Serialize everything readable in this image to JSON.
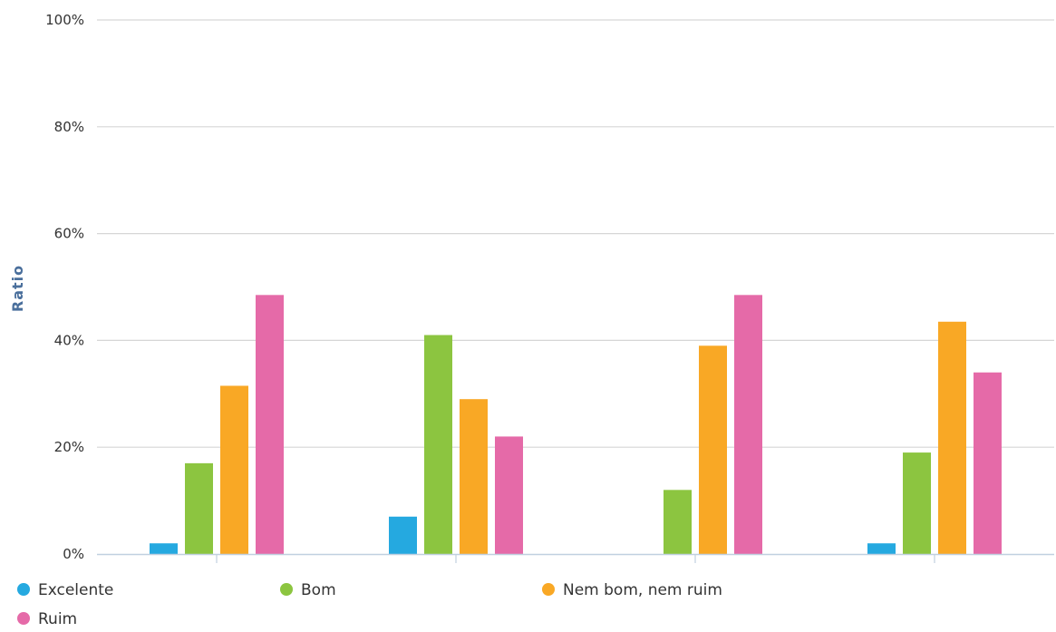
{
  "chart_data": {
    "type": "bar",
    "title": "",
    "xlabel": "",
    "ylabel": "Ratio",
    "ylim": [
      0,
      100
    ],
    "y_ticks": [
      0,
      20,
      40,
      60,
      80,
      100
    ],
    "y_tick_format": "{v}%",
    "grid": true,
    "legend_position": "bottom",
    "categories": [
      "",
      "",
      "",
      ""
    ],
    "series": [
      {
        "name": "Excelente",
        "color": "#25a9e0",
        "values": [
          2,
          7,
          0,
          2
        ]
      },
      {
        "name": "Bom",
        "color": "#8cc540",
        "values": [
          17,
          41,
          12,
          19
        ]
      },
      {
        "name": "Nem bom, nem ruim",
        "color": "#f9a825",
        "values": [
          31.5,
          29,
          39,
          43.5
        ]
      },
      {
        "name": "Ruim",
        "color": "#e56aa8",
        "values": [
          48.5,
          22,
          48.5,
          34
        ]
      }
    ]
  }
}
